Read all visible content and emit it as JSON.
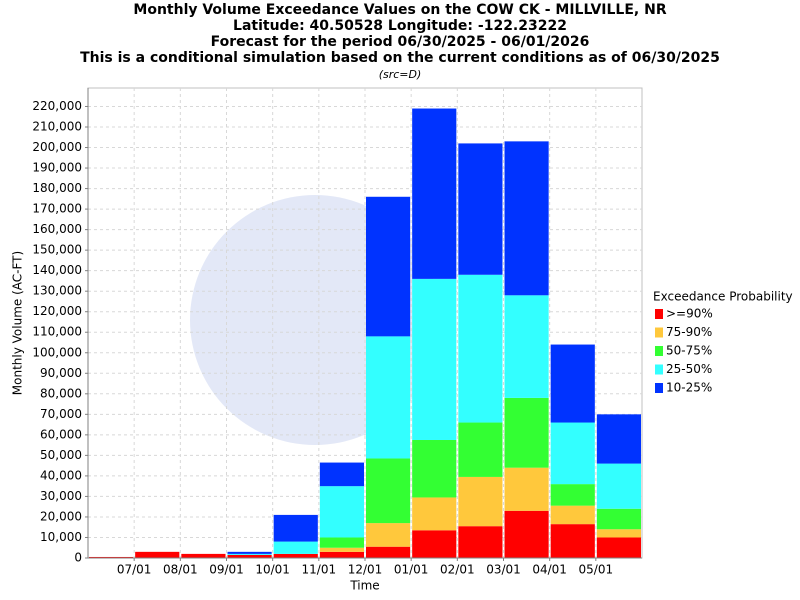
{
  "chart_data": {
    "type": "stacked_bar",
    "title": [
      "Monthly Volume Exceedance Values on the COW CK - MILLVILLE, NR",
      "Latitude: 40.50528 Longitude: -122.23222",
      "Forecast for the period 06/30/2025 - 06/01/2026",
      "This is a conditional simulation based on the current conditions as of 06/30/2025"
    ],
    "subtitle": "(src=D)",
    "x_label": "Time",
    "y_label": "Monthly Volume (AC-FT)",
    "legend_title": "Exceedance Probability",
    "legend": "right",
    "grid": true,
    "categories": [
      null,
      "07/01",
      "08/01",
      "09/01",
      "10/01",
      "11/01",
      "12/01",
      "01/01",
      "02/01",
      "03/01",
      "04/01",
      "05/01"
    ],
    "series": [
      {
        "name": ">=90%",
        "color": "#ff0000",
        "values": [
          500,
          3000,
          2000,
          1500,
          2000,
          3000,
          5500,
          13500,
          15500,
          23000,
          16500,
          10000
        ]
      },
      {
        "name": "75-90%",
        "color": "#ffc83c",
        "values": [
          0,
          0,
          0,
          0,
          0,
          2000,
          11500,
          16000,
          24000,
          21000,
          9000,
          4000
        ]
      },
      {
        "name": "50-75%",
        "color": "#33ff33",
        "values": [
          0,
          0,
          0,
          0,
          0,
          5000,
          31500,
          28000,
          26500,
          34000,
          10500,
          10000
        ]
      },
      {
        "name": "25-50%",
        "color": "#33ffff",
        "values": [
          0,
          0,
          0,
          500,
          6000,
          25000,
          59500,
          78500,
          72000,
          50000,
          30000,
          22000
        ]
      },
      {
        "name": "10-25%",
        "color": "#0033ff",
        "values": [
          0,
          0,
          0,
          1000,
          13000,
          11500,
          68000,
          83000,
          64000,
          75000,
          38000,
          24000
        ]
      }
    ],
    "ylim": [
      0,
      229000
    ],
    "yticks": [
      0,
      {
        "value": 10000,
        "label": "10,000"
      },
      {
        "value": 20000,
        "label": "20,000"
      },
      {
        "value": 30000,
        "label": "30,000"
      },
      {
        "value": 40000,
        "label": "40,000"
      },
      {
        "value": 50000,
        "label": "50,000"
      },
      {
        "value": 60000,
        "label": "60,000"
      },
      {
        "value": 70000,
        "label": "70,000"
      },
      {
        "value": 80000,
        "label": "80,000"
      },
      {
        "value": 90000,
        "label": "90,000"
      },
      {
        "value": 100000,
        "label": "100,000"
      },
      {
        "value": 110000,
        "label": "110,000"
      },
      {
        "value": 120000,
        "label": "120,000"
      },
      {
        "value": 130000,
        "label": "130,000"
      },
      {
        "value": 140000,
        "label": "140,000"
      },
      {
        "value": 150000,
        "label": "150,000"
      },
      {
        "value": 160000,
        "label": "160,000"
      },
      {
        "value": 170000,
        "label": "170,000"
      },
      {
        "value": 180000,
        "label": "180,000"
      },
      {
        "value": 190000,
        "label": "190,000"
      },
      {
        "value": 200000,
        "label": "200,000"
      },
      {
        "value": 210000,
        "label": "210,000"
      },
      {
        "value": 220000,
        "label": "220,000"
      }
    ]
  }
}
